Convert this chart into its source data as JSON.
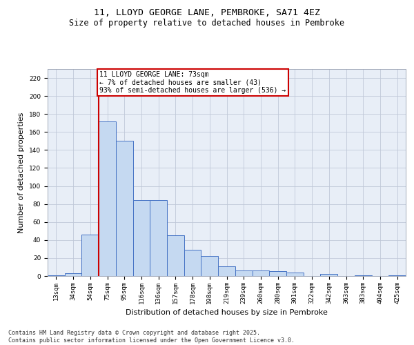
{
  "title_line1": "11, LLOYD GEORGE LANE, PEMBROKE, SA71 4EZ",
  "title_line2": "Size of property relative to detached houses in Pembroke",
  "xlabel": "Distribution of detached houses by size in Pembroke",
  "ylabel": "Number of detached properties",
  "categories": [
    "13sqm",
    "34sqm",
    "54sqm",
    "75sqm",
    "95sqm",
    "116sqm",
    "136sqm",
    "157sqm",
    "178sqm",
    "198sqm",
    "219sqm",
    "239sqm",
    "260sqm",
    "280sqm",
    "301sqm",
    "322sqm",
    "342sqm",
    "363sqm",
    "383sqm",
    "404sqm",
    "425sqm"
  ],
  "values": [
    1,
    3,
    46,
    172,
    150,
    84,
    84,
    45,
    29,
    22,
    11,
    6,
    6,
    5,
    4,
    0,
    2,
    0,
    1,
    0,
    1
  ],
  "bar_color": "#c5d9f1",
  "bar_edge_color": "#4472c4",
  "subject_line_index": 3,
  "subject_line_color": "#cc0000",
  "annotation_text": "11 LLOYD GEORGE LANE: 73sqm\n← 7% of detached houses are smaller (43)\n93% of semi-detached houses are larger (536) →",
  "annotation_box_color": "#cc0000",
  "ylim": [
    0,
    230
  ],
  "yticks": [
    0,
    20,
    40,
    60,
    80,
    100,
    120,
    140,
    160,
    180,
    200,
    220
  ],
  "grid_color": "#c0c8d8",
  "background_color": "#e8eef7",
  "footer_text": "Contains HM Land Registry data © Crown copyright and database right 2025.\nContains public sector information licensed under the Open Government Licence v3.0.",
  "title_fontsize": 9.5,
  "subtitle_fontsize": 8.5,
  "axis_label_fontsize": 8,
  "tick_fontsize": 6.5,
  "annotation_fontsize": 7,
  "footer_fontsize": 6
}
